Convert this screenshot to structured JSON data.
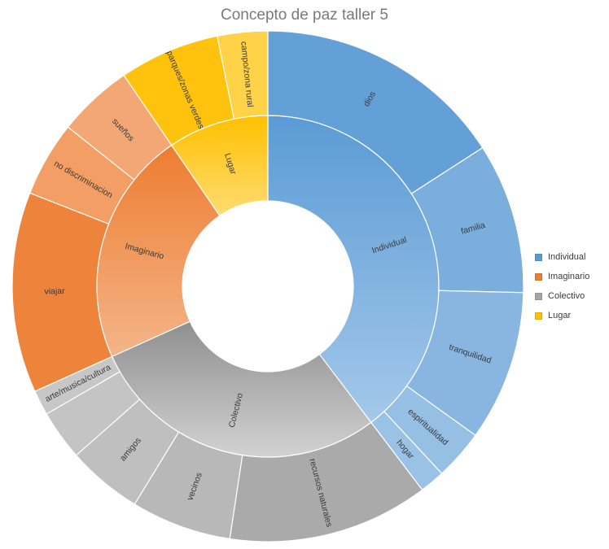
{
  "chart_data": {
    "type": "sunburst",
    "title": "Concepto de paz taller 5",
    "legend_position": "right",
    "groups": [
      {
        "name": "Individual",
        "color": "#5b9bd5",
        "children": [
          {
            "name": "dios",
            "value": 5
          },
          {
            "name": "familia",
            "value": 3
          },
          {
            "name": "tranquilidad",
            "value": 3
          },
          {
            "name": "espiritualidad",
            "value": 1
          },
          {
            "name": "hogar",
            "value": 0.5
          }
        ]
      },
      {
        "name": "Colectivo",
        "color": "#a5a5a5",
        "children": [
          {
            "name": "recursos naturales",
            "value": 4
          },
          {
            "name": "vecinos",
            "value": 2
          },
          {
            "name": "amigos",
            "value": 1.5
          },
          {
            "name": "",
            "value": 1
          },
          {
            "name": "arte/musica/cultura",
            "value": 0.5
          }
        ]
      },
      {
        "name": "Imaginario",
        "color": "#ed7d31",
        "children": [
          {
            "name": "viajar",
            "value": 4
          },
          {
            "name": "no discriminacion",
            "value": 1.5
          },
          {
            "name": "sueños",
            "value": 1.5
          }
        ]
      },
      {
        "name": "Lugar",
        "color": "#ffc000",
        "children": [
          {
            "name": "parques/zonas verdes",
            "value": 2
          },
          {
            "name": "campo/zona rural",
            "value": 1
          }
        ]
      }
    ],
    "legend": [
      {
        "name": "Individual",
        "color": "#5b9bd5"
      },
      {
        "name": "Imaginario",
        "color": "#ed7d31"
      },
      {
        "name": "Colectivo",
        "color": "#a5a5a5"
      },
      {
        "name": "Lugar",
        "color": "#ffc000"
      }
    ]
  }
}
